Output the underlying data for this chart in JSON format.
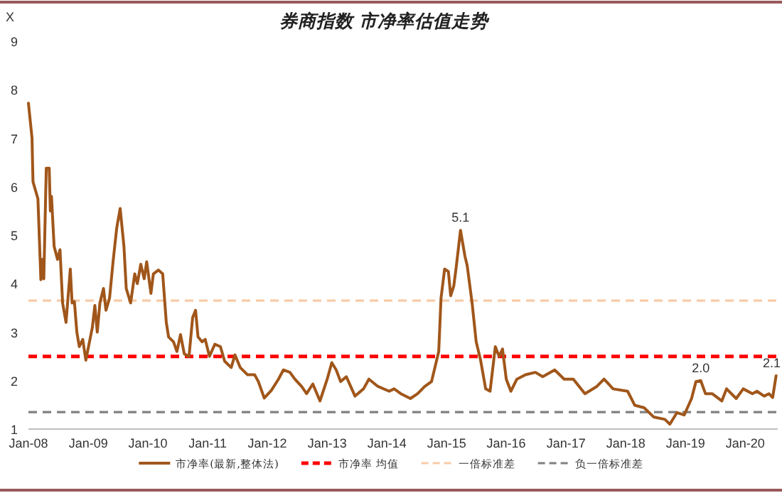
{
  "chart_data": {
    "type": "line",
    "title": "券商指数 市净率估值走势",
    "ylabel": "X",
    "xlim": [
      "2008-01-01",
      "2020-07-18"
    ],
    "ylim": [
      1,
      9
    ],
    "yticks": [
      1,
      2,
      3,
      4,
      5,
      6,
      7,
      8,
      9
    ],
    "xticks": [
      {
        "value": "2008-01",
        "label": "Jan-08"
      },
      {
        "value": "2009-01",
        "label": "Jan-09"
      },
      {
        "value": "2010-01",
        "label": "Jan-10"
      },
      {
        "value": "2011-01",
        "label": "Jan-11"
      },
      {
        "value": "2012-01",
        "label": "Jan-12"
      },
      {
        "value": "2013-01",
        "label": "Jan-13"
      },
      {
        "value": "2014-01",
        "label": "Jan-14"
      },
      {
        "value": "2015-01",
        "label": "Jan-15"
      },
      {
        "value": "2016-01",
        "label": "Jan-16"
      },
      {
        "value": "2017-01",
        "label": "Jan-17"
      },
      {
        "value": "2018-01",
        "label": "Jan-18"
      },
      {
        "value": "2019-01",
        "label": "Jan-19"
      },
      {
        "value": "2020-01",
        "label": "Jan-20"
      }
    ],
    "grid": false,
    "legend": "bottom",
    "marker": "none",
    "line_style": "solid",
    "series": [
      {
        "name": "市净率(最新,整体法)",
        "color": "#a0561a",
        "x": [
          "2008-01-01",
          "2008-01-23",
          "2008-01-26",
          "2008-01-29",
          "2008-02-28",
          "2008-03-17",
          "2008-03-27",
          "2008-04-04",
          "2008-04-19",
          "2008-05-07",
          "2008-05-14",
          "2008-05-21",
          "2008-06-06",
          "2008-06-27",
          "2008-07-12",
          "2008-07-28",
          "2008-08-18",
          "2008-09-13",
          "2008-09-24",
          "2008-10-08",
          "2008-10-23",
          "2008-11-07",
          "2008-11-28",
          "2008-12-17",
          "2009-01-26",
          "2009-02-10",
          "2009-02-25",
          "2009-03-13",
          "2009-04-04",
          "2009-04-19",
          "2009-05-11",
          "2009-06-02",
          "2009-06-24",
          "2009-07-15",
          "2009-08-07",
          "2009-08-21",
          "2009-09-17",
          "2009-10-12",
          "2009-10-28",
          "2009-11-18",
          "2009-12-09",
          "2009-12-24",
          "2010-01-19",
          "2010-02-03",
          "2010-03-06",
          "2010-04-01",
          "2010-04-23",
          "2010-05-07",
          "2010-06-06",
          "2010-06-27",
          "2010-07-19",
          "2010-08-11",
          "2010-09-09",
          "2010-10-01",
          "2010-10-19",
          "2010-11-03",
          "2010-11-28",
          "2010-12-17",
          "2011-01-12",
          "2011-02-14",
          "2011-03-20",
          "2011-04-15",
          "2011-05-25",
          "2011-06-17",
          "2011-07-19",
          "2011-09-02",
          "2011-10-15",
          "2011-11-07",
          "2011-12-13",
          "2012-01-26",
          "2012-03-09",
          "2012-04-08",
          "2012-05-18",
          "2012-06-17",
          "2012-07-28",
          "2012-08-28",
          "2012-10-05",
          "2012-11-18",
          "2013-01-01",
          "2013-01-29",
          "2013-02-25",
          "2013-03-24",
          "2013-04-28",
          "2013-06-20",
          "2013-08-11",
          "2013-09-13",
          "2013-11-07",
          "2014-01-15",
          "2014-02-14",
          "2014-03-27",
          "2014-05-25",
          "2014-07-08",
          "2014-08-21",
          "2014-10-01",
          "2014-11-14",
          "2014-11-28",
          "2014-12-20",
          "2015-01-12",
          "2015-01-26",
          "2015-02-14",
          "2015-03-02",
          "2015-03-27",
          "2015-04-23",
          "2015-05-07",
          "2015-06-06",
          "2015-07-01",
          "2015-07-28",
          "2015-08-28",
          "2015-09-24",
          "2015-10-26",
          "2015-11-18",
          "2015-12-09",
          "2016-01-01",
          "2016-01-29",
          "2016-03-06",
          "2016-04-28",
          "2016-06-27",
          "2016-08-11",
          "2016-10-23",
          "2016-12-20",
          "2017-02-14",
          "2017-04-26",
          "2017-07-08",
          "2017-08-21",
          "2017-10-15",
          "2018-01-12",
          "2018-02-25",
          "2018-04-23",
          "2018-06-20",
          "2018-08-28",
          "2018-09-27",
          "2018-11-10",
          "2018-12-24",
          "2019-02-07",
          "2019-03-06",
          "2019-04-04",
          "2019-05-03",
          "2019-06-13",
          "2019-08-11",
          "2019-09-09",
          "2019-11-07",
          "2019-12-20",
          "2020-02-14",
          "2020-03-13",
          "2020-04-26",
          "2020-05-25",
          "2020-06-17",
          "2020-07-08"
        ],
        "values": [
          7.72,
          7.0,
          6.5,
          6.1,
          5.75,
          4.08,
          4.5,
          4.1,
          6.38,
          6.38,
          5.5,
          5.8,
          4.77,
          4.5,
          4.7,
          3.6,
          3.2,
          4.3,
          3.6,
          3.63,
          3.0,
          2.7,
          2.85,
          2.42,
          3.1,
          3.55,
          3.0,
          3.6,
          3.9,
          3.45,
          3.7,
          4.47,
          5.15,
          5.55,
          4.77,
          3.9,
          3.6,
          4.2,
          4.0,
          4.4,
          4.1,
          4.45,
          3.8,
          4.2,
          4.28,
          4.2,
          3.2,
          2.9,
          2.8,
          2.6,
          2.95,
          2.55,
          2.5,
          3.3,
          3.45,
          2.9,
          2.8,
          2.85,
          2.5,
          2.75,
          2.7,
          2.4,
          2.27,
          2.53,
          2.27,
          2.12,
          2.12,
          1.98,
          1.64,
          1.8,
          2.03,
          2.22,
          2.17,
          2.03,
          1.88,
          1.73,
          1.93,
          1.58,
          2.03,
          2.37,
          2.22,
          1.98,
          2.08,
          1.68,
          1.83,
          2.03,
          1.88,
          1.78,
          1.83,
          1.73,
          1.63,
          1.73,
          1.88,
          1.98,
          2.6,
          3.7,
          4.3,
          4.25,
          3.75,
          3.95,
          4.37,
          5.1,
          4.57,
          4.37,
          3.6,
          2.8,
          2.42,
          1.83,
          1.78,
          2.7,
          2.5,
          2.65,
          2.03,
          1.78,
          2.03,
          2.12,
          2.17,
          2.08,
          2.22,
          2.03,
          2.03,
          1.73,
          1.88,
          2.03,
          1.83,
          1.78,
          1.49,
          1.44,
          1.25,
          1.2,
          1.1,
          1.34,
          1.29,
          1.63,
          1.98,
          2.0,
          1.73,
          1.73,
          1.58,
          1.83,
          1.63,
          1.83,
          1.73,
          1.78,
          1.68,
          1.73,
          1.65,
          2.1
        ]
      }
    ],
    "ref_lines": [
      {
        "axis": "y",
        "value": 2.5,
        "label": "市净率 均值",
        "color": "#ff0000",
        "line_style": "dashed"
      },
      {
        "axis": "y",
        "value": 3.65,
        "label": "一倍标准差",
        "color": "#f8cba8",
        "line_style": "dashed"
      },
      {
        "axis": "y",
        "value": 1.35,
        "label": "负一倍标准差",
        "color": "#808080",
        "line_style": "dashed"
      }
    ],
    "annotations": [
      {
        "text": "5.1",
        "x": "2015-03-27",
        "y": 5.1
      },
      {
        "text": "2.0",
        "x": "2019-04-04",
        "y": 2.0
      },
      {
        "text": "2.1",
        "x": "2020-07-08",
        "y": 2.1
      }
    ]
  }
}
